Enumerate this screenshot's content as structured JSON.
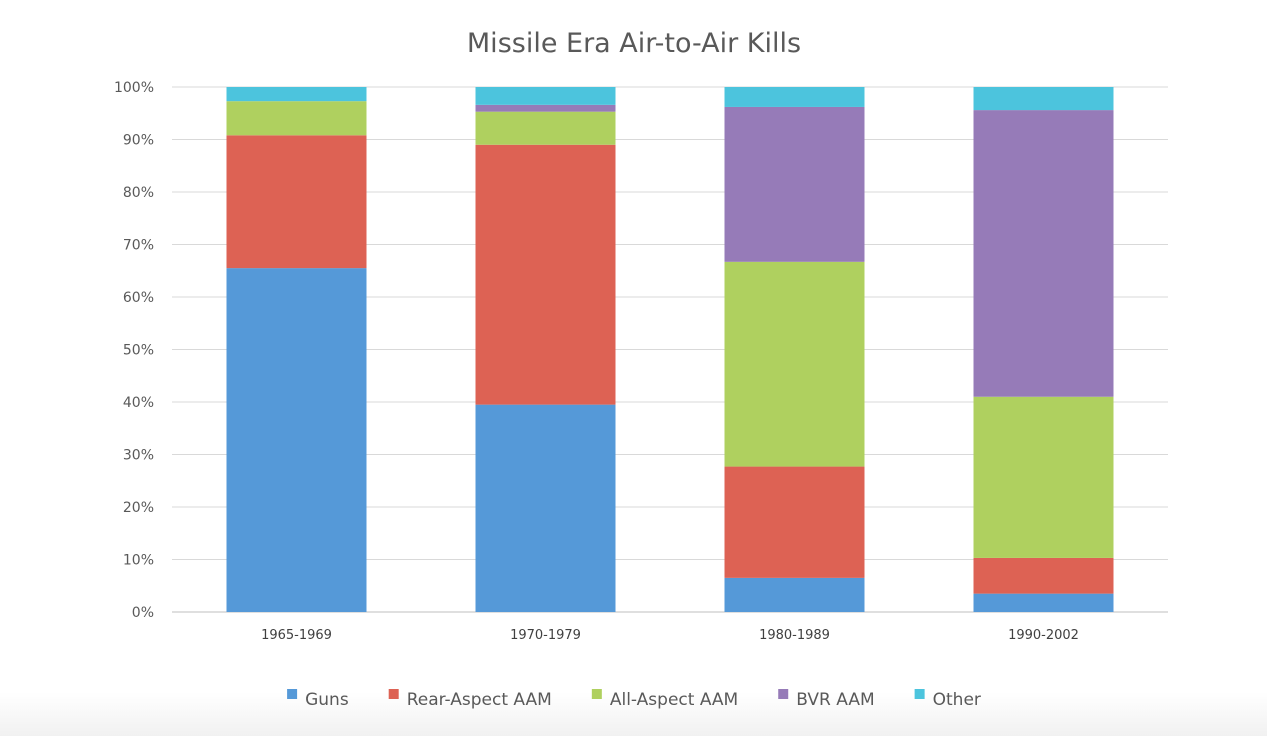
{
  "chart_data": {
    "type": "bar",
    "stacked": true,
    "normalized": true,
    "title": "Missile Era Air-to-Air Kills",
    "xlabel": "",
    "ylabel": "",
    "ylim": [
      0,
      100
    ],
    "y_ticks": [
      0,
      10,
      20,
      30,
      40,
      50,
      60,
      70,
      80,
      90,
      100
    ],
    "y_tick_labels": [
      "0%",
      "10%",
      "20%",
      "30%",
      "40%",
      "50%",
      "60%",
      "70%",
      "80%",
      "90%",
      "100%"
    ],
    "grid": true,
    "legend_position": "bottom",
    "categories": [
      "1965-1969",
      "1970-1979",
      "1980-1989",
      "1990-2002"
    ],
    "series": [
      {
        "name": "Guns",
        "color": "#5599d8",
        "values": [
          65.5,
          39.5,
          6.5,
          3.5
        ]
      },
      {
        "name": "Rear-Aspect AAM",
        "color": "#dd6254",
        "values": [
          25.3,
          49.5,
          21.2,
          6.8
        ]
      },
      {
        "name": "All-Aspect AAM",
        "color": "#afd05f",
        "values": [
          6.5,
          6.3,
          39.0,
          30.7
        ]
      },
      {
        "name": "BVR AAM",
        "color": "#967bb8",
        "values": [
          0.0,
          1.3,
          29.5,
          54.6
        ]
      },
      {
        "name": "Other",
        "color": "#4cc4dd",
        "values": [
          2.7,
          3.4,
          3.8,
          4.4
        ]
      }
    ]
  }
}
